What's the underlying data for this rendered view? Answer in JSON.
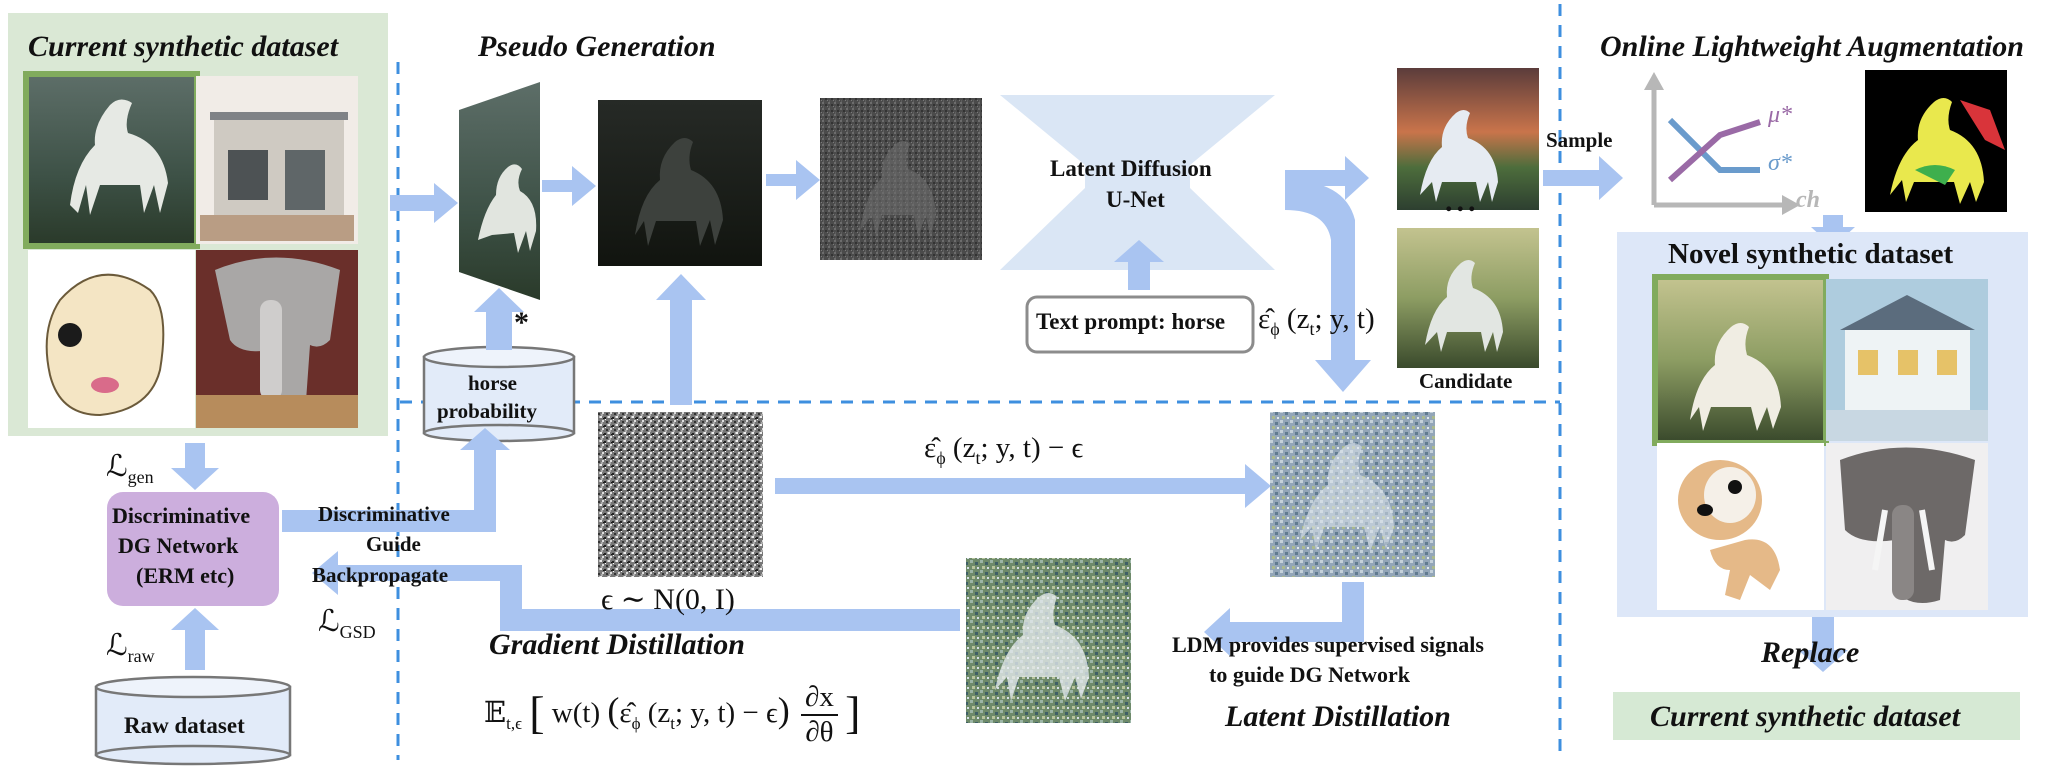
{
  "sections": {
    "current_title": "Current synthetic dataset",
    "pseudo_title": "Pseudo Generation",
    "online_title": "Online Lightweight Augmentation",
    "novel_title": "Novel synthetic dataset",
    "gradient_title": "Gradient Distillation",
    "latent_title": "Latent Distillation",
    "replace_label": "Replace",
    "bottom_current": "Current synthetic dataset"
  },
  "boxes": {
    "unet_line1": "Latent Diffusion",
    "unet_line2": "U-Net",
    "text_prompt": "Text prompt: horse",
    "horse_prob_line1": "horse",
    "horse_prob_line2": "probability",
    "dg_line1": "Discriminative",
    "dg_line2": "DG Network",
    "dg_line3": "(ERM etc)",
    "raw_dataset": "Raw dataset"
  },
  "labels": {
    "sample": "Sample",
    "candidate": "Candidate",
    "ellipsis": "...",
    "asterisk": "*",
    "disc_guide_1": "Discriminative",
    "disc_guide_2": "Guide",
    "backprop": "Backpropagate",
    "ldm_line1": "LDM provides supervised signals",
    "ldm_line2": "to guide DG Network",
    "mu": "μ*",
    "sigma": "σ*",
    "ch": "ch"
  },
  "math": {
    "eps_hat": "ε̂",
    "eps_hat_sub": "ϕ",
    "eps_hat_args": "(z",
    "eps_hat_t": "t",
    "eps_hat_rest": "; y, t)",
    "eps_minus": "− ϵ",
    "noise_dist": "ϵ ∼ N(0, I)",
    "L": "ℒ",
    "gen_sub": "gen",
    "gsd_sub": "GSD",
    "raw_sub": "raw",
    "expect": "𝔼",
    "expect_sub": "t,ϵ",
    "w_t": "w(t)",
    "partial_num": "∂x",
    "partial_den": "∂θ"
  },
  "colors": {
    "arrow": "#a9c4f1",
    "green_panel": "#dae8d5",
    "purple_box": "#ccaedd",
    "unet_fill": "#dae6f5",
    "novel_panel": "#dde7f8",
    "bottom_panel": "#d6e9d4",
    "dash": "#3e8fdf",
    "image_border_green": "#81ab5d",
    "cylinder_fill": "#e2ebf9"
  }
}
